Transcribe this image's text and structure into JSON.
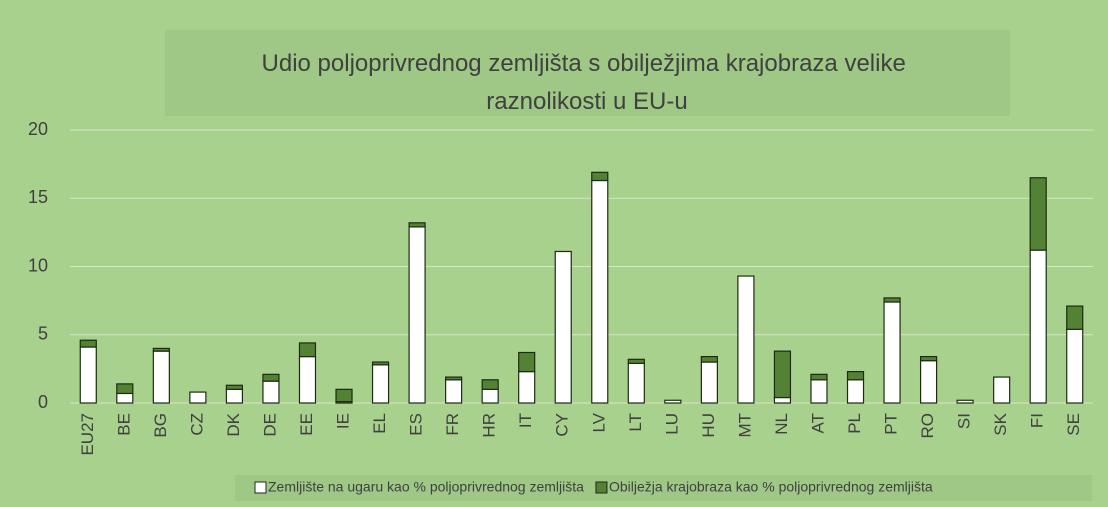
{
  "chart_data": {
    "type": "stacked_bar",
    "title": "Udio poljoprivrednog zemljišta s obilježjima krajobraza velike raznolikosti u EU-u",
    "categories": [
      "EU27",
      "BE",
      "BG",
      "CZ",
      "DK",
      "DE",
      "EE",
      "IE",
      "EL",
      "ES",
      "FR",
      "HR",
      "IT",
      "CY",
      "LV",
      "LT",
      "LU",
      "HU",
      "MT",
      "NL",
      "AT",
      "PL",
      "PT",
      "RO",
      "SI",
      "SK",
      "FI",
      "SE"
    ],
    "series": [
      {
        "name": "Zemljište na ugaru kao % poljoprivrednog zemljišta",
        "color": "#ffffff",
        "values": [
          4.1,
          0.7,
          3.8,
          0.8,
          1.0,
          1.6,
          3.4,
          0.1,
          2.8,
          12.9,
          1.7,
          1.0,
          2.3,
          11.1,
          16.3,
          2.9,
          0.2,
          3.0,
          9.3,
          0.4,
          1.7,
          1.7,
          7.4,
          3.1,
          0.2,
          1.9,
          11.2,
          5.4
        ]
      },
      {
        "name": "Obilježja krajobraza kao % poljoprivrednog zemljišta",
        "color": "#548235",
        "values": [
          0.5,
          0.7,
          0.2,
          0,
          0.3,
          0.5,
          1.0,
          0.9,
          0.2,
          0.3,
          0.2,
          0.7,
          1.4,
          0,
          0.6,
          0.3,
          0,
          0.4,
          0,
          3.4,
          0.4,
          0.6,
          0.3,
          0.3,
          0,
          0,
          5.3,
          1.7
        ]
      }
    ],
    "ylim": [
      0,
      20
    ],
    "yticks": [
      0,
      5,
      10,
      15,
      20
    ],
    "grid": true,
    "legend": "bottom"
  }
}
